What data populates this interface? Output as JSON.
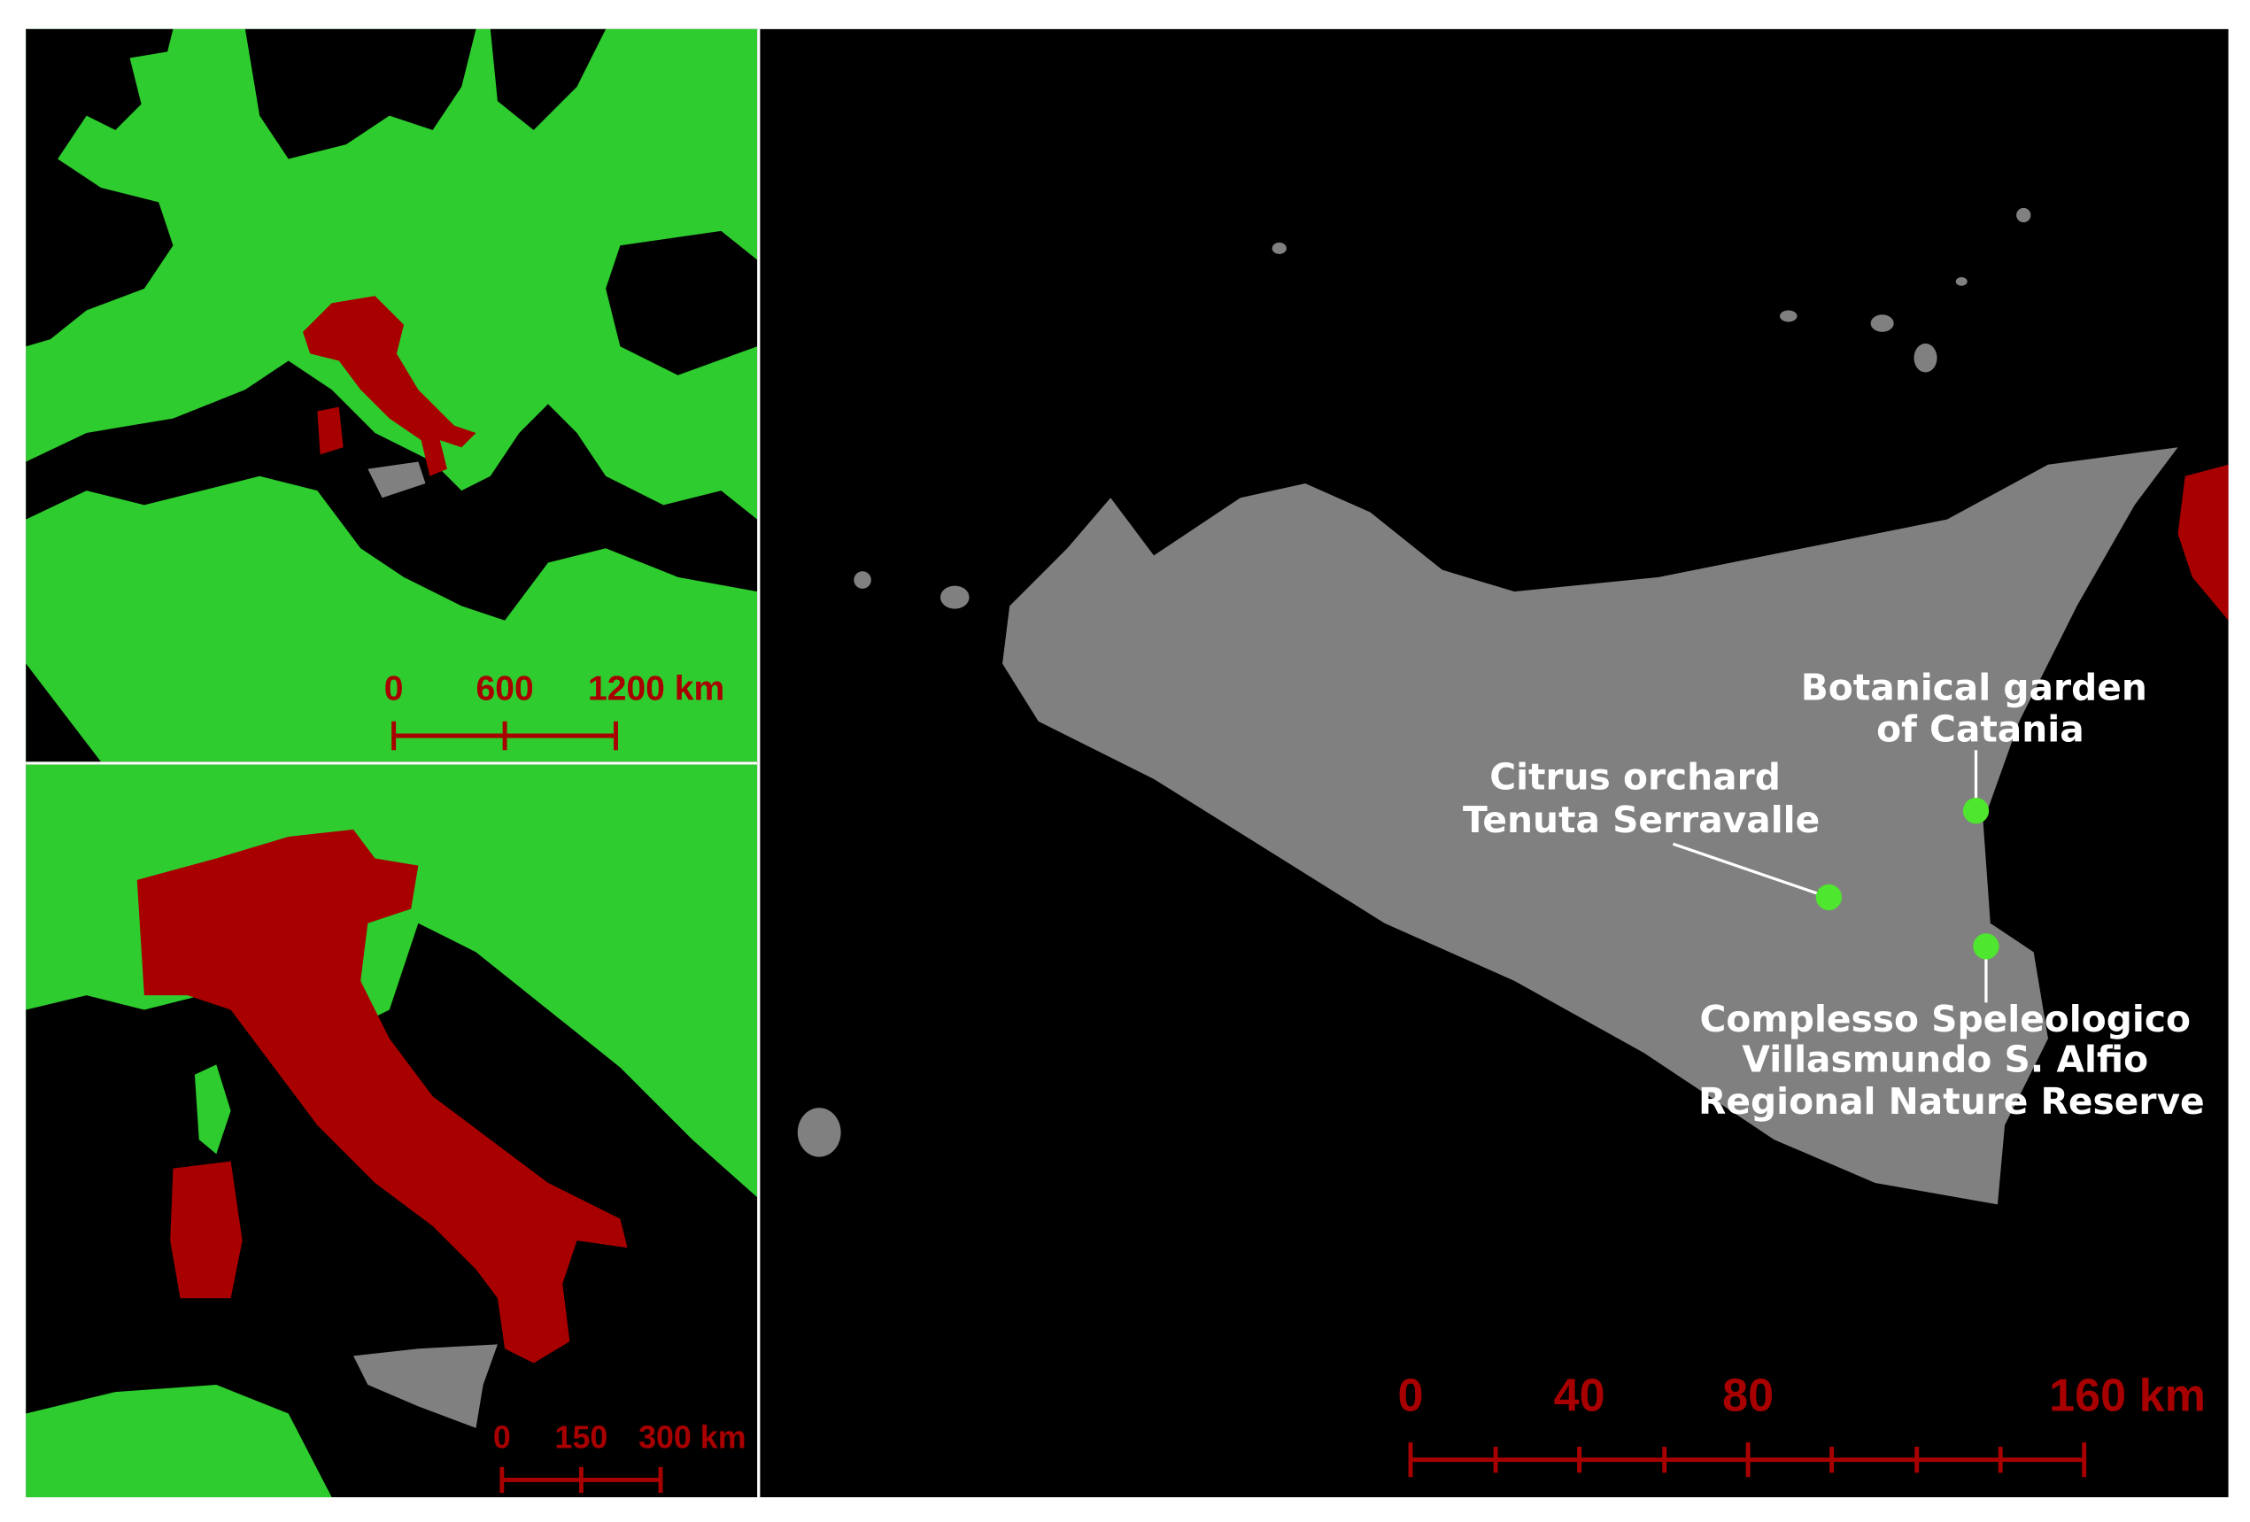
{
  "inset_europe": {
    "scale_labels": [
      "0",
      "600",
      "1200 km"
    ]
  },
  "inset_italy": {
    "scale_labels": [
      "0",
      "150",
      "300 km"
    ]
  },
  "main_map": {
    "scale_labels": [
      "0",
      "40",
      "80",
      "160 km"
    ],
    "sites": [
      {
        "label": [
          "Botanical garden",
          "of Catania"
        ]
      },
      {
        "label": [
          "Citrus orchard",
          "Tenuta Serravalle"
        ]
      },
      {
        "label": [
          "Complesso Speleologico",
          "Villasmundo S. Alfio",
          "Regional Nature Reserve"
        ]
      }
    ]
  }
}
